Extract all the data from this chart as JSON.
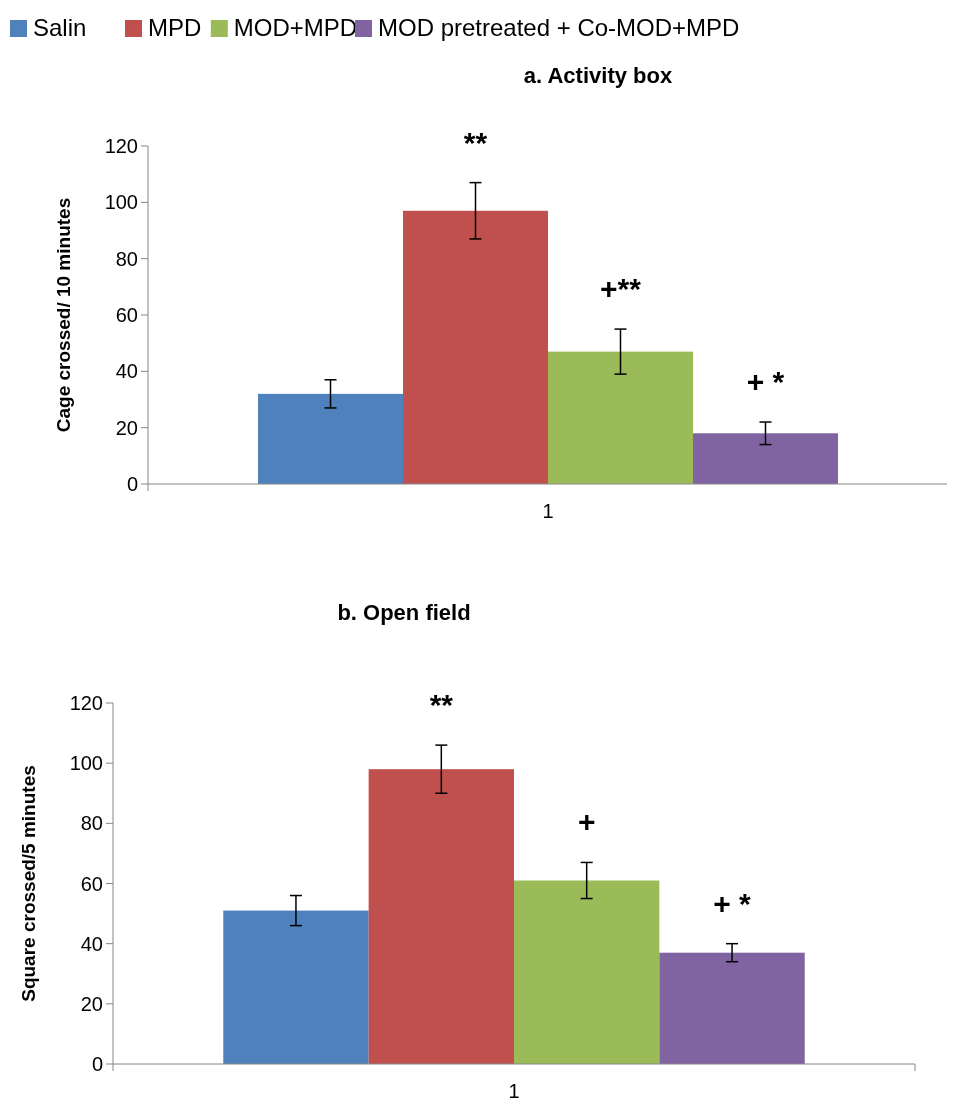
{
  "chart_data": [
    {
      "type": "bar",
      "title": "a. Activity box",
      "ylabel": "Cage crossed/ 10 minutes",
      "categories": [
        "1"
      ],
      "ylim": [
        0,
        120
      ],
      "yticks": [
        0,
        20,
        40,
        60,
        80,
        100,
        120
      ],
      "grid": false,
      "legend": "top",
      "series": [
        {
          "name": "Salin",
          "color": "#4f81bd",
          "values": [
            32
          ],
          "errors": [
            [
              27,
              37
            ]
          ]
        },
        {
          "name": "MPD",
          "color": "#c0504d",
          "values": [
            97
          ],
          "errors": [
            [
              87,
              107
            ]
          ]
        },
        {
          "name": "MOD+MPD",
          "color": "#9bbb59",
          "values": [
            47
          ],
          "errors": [
            [
              39,
              55
            ]
          ]
        },
        {
          "name": "MOD pretreated + Co-MOD+MPD",
          "color": "#8064a2",
          "values": [
            18
          ],
          "errors": [
            [
              14,
              22
            ]
          ]
        }
      ],
      "annotations": [
        "**",
        "+**",
        "+ *"
      ]
    },
    {
      "type": "bar",
      "title": "b. Open field",
      "ylabel": "Square crossed/5 minutes",
      "categories": [
        "1"
      ],
      "ylim": [
        0,
        120
      ],
      "yticks": [
        0,
        20,
        40,
        60,
        80,
        100,
        120
      ],
      "grid": false,
      "legend": false,
      "series": [
        {
          "color": "#4f81bd",
          "values": [
            51
          ],
          "errors": [
            [
              46,
              56
            ]
          ]
        },
        {
          "color": "#c0504d",
          "values": [
            98
          ],
          "errors": [
            [
              90,
              106
            ]
          ]
        },
        {
          "color": "#9bbb59",
          "values": [
            61
          ],
          "errors": [
            [
              55,
              67
            ]
          ]
        },
        {
          "color": "#8064a2",
          "values": [
            37
          ],
          "errors": [
            [
              34,
              40
            ]
          ]
        }
      ],
      "annotations": [
        "**",
        "+",
        "+ *"
      ]
    }
  ]
}
